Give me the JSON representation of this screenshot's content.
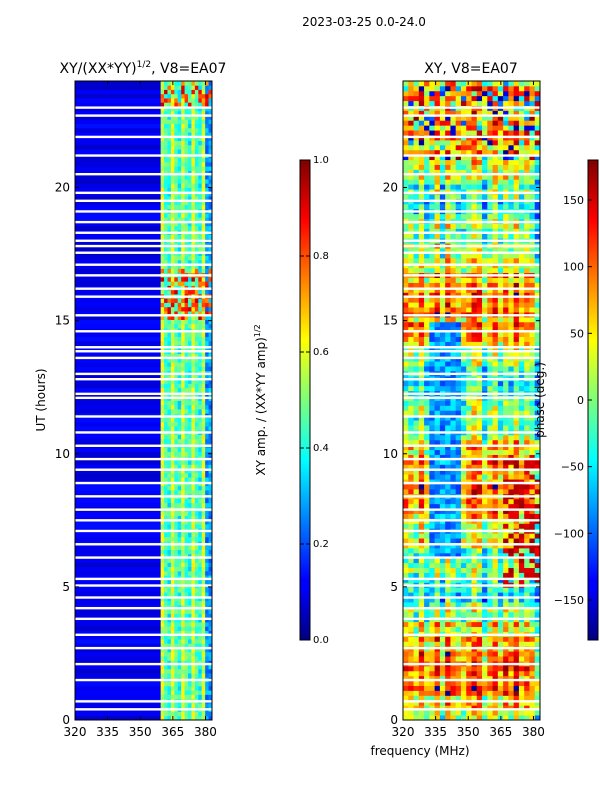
{
  "figure": {
    "suptitle": "2023-03-25 0.0-24.0",
    "xlabel": "frequency (MHz)"
  },
  "chart_data": [
    {
      "type": "heatmap",
      "panel": "amplitude",
      "title": "XY/(XX*YY)",
      "title_exponent": "1/2",
      "title_suffix": ", V8=EA07",
      "ylabel": "UT (hours)",
      "xlim": [
        320,
        383
      ],
      "ylim": [
        0,
        24
      ],
      "xticks": [
        320,
        335,
        350,
        365,
        380
      ],
      "yticks": [
        0,
        5,
        10,
        15,
        20
      ],
      "flagged_hours": [
        0.4,
        0.7,
        1.5,
        2.1,
        2.7,
        3.2,
        3.8,
        4.2,
        4.6,
        5.05,
        5.3,
        6.1,
        6.6,
        7.1,
        7.5,
        7.9,
        8.4,
        8.9,
        9.4,
        9.8,
        10.3,
        10.8,
        11.4,
        12.1,
        12.25,
        12.8,
        13.0,
        13.6,
        13.85,
        14.0,
        14.6,
        15.2,
        15.9,
        16.2,
        16.7,
        17.1,
        17.55,
        17.8,
        18.0,
        18.3,
        18.7,
        19.1,
        19.5,
        19.8,
        20.5,
        21.2,
        21.9,
        22.7,
        23.0
      ],
      "colorbar": {
        "label": "XY amp. / (XX*YY amp)",
        "label_exponent": "1/2",
        "range": [
          0.0,
          1.0
        ],
        "ticks": [
          "0.0",
          "0.2",
          "0.4",
          "0.6",
          "0.8",
          "1.0"
        ]
      }
    },
    {
      "type": "heatmap",
      "panel": "phase",
      "title": "XY, V8=EA07",
      "xlim": [
        320,
        383
      ],
      "ylim": [
        0,
        24
      ],
      "xticks": [
        320,
        335,
        350,
        365,
        380
      ],
      "yticks": [
        0,
        5,
        10,
        15,
        20
      ],
      "flagged_hours": [
        0.4,
        0.7,
        1.5,
        2.1,
        2.7,
        3.2,
        3.8,
        4.2,
        4.6,
        5.05,
        5.3,
        6.1,
        6.6,
        7.1,
        7.5,
        7.9,
        8.4,
        8.9,
        9.4,
        9.8,
        10.3,
        10.8,
        11.4,
        12.1,
        12.25,
        12.8,
        13.0,
        13.6,
        13.85,
        14.0,
        14.6,
        15.2,
        15.9,
        16.2,
        16.7,
        17.1,
        17.55,
        17.8,
        18.0,
        18.3,
        18.7,
        19.1,
        19.5,
        19.8,
        20.5,
        21.2,
        21.9,
        22.7,
        23.0
      ],
      "colorbar": {
        "label": "phase (deg.)",
        "range": [
          -180,
          180
        ],
        "ticks": [
          "−150",
          "−100",
          "−50",
          "0",
          "50",
          "100",
          "150"
        ],
        "tick_values": [
          -150,
          -100,
          -50,
          0,
          50,
          100,
          150
        ]
      }
    }
  ]
}
